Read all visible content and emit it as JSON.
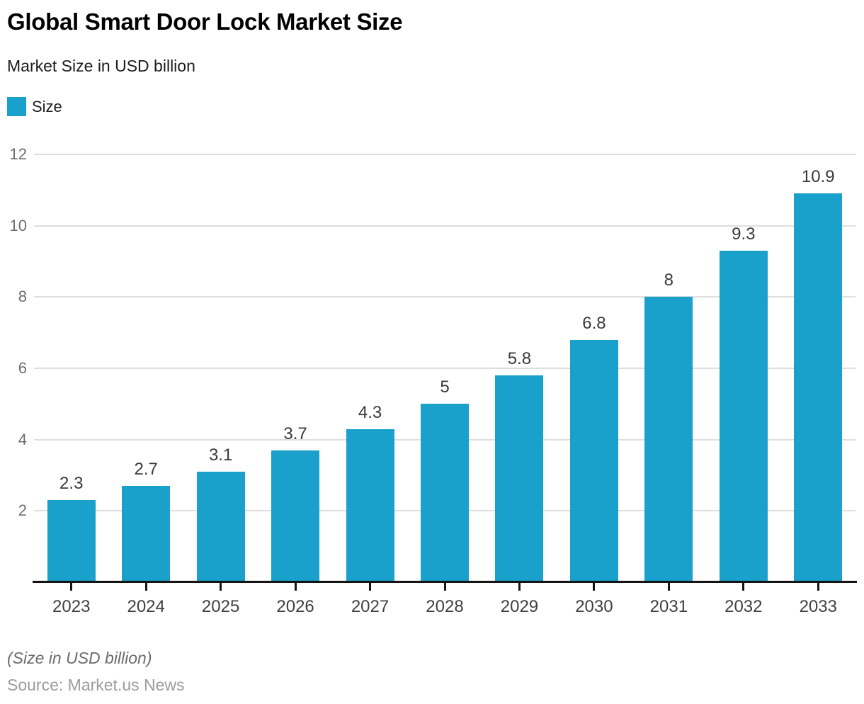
{
  "header": {
    "title": "Global Smart Door Lock Market Size",
    "subtitle": "Market Size in USD billion",
    "legend": [
      {
        "label": "Size",
        "color": "#1AA1CB"
      }
    ]
  },
  "chart_data": {
    "type": "bar",
    "title": "Global Smart Door Lock Market Size",
    "subtitle": "Market Size in USD billion",
    "categories": [
      "2023",
      "2024",
      "2025",
      "2026",
      "2027",
      "2028",
      "2029",
      "2030",
      "2031",
      "2032",
      "2033"
    ],
    "series": [
      {
        "name": "Size",
        "color": "#1AA1CB",
        "values": [
          2.3,
          2.7,
          3.1,
          3.7,
          4.3,
          5,
          5.8,
          6.8,
          8,
          9.3,
          10.9
        ]
      }
    ],
    "data_labels": [
      "2.3",
      "2.7",
      "3.1",
      "3.7",
      "4.3",
      "5",
      "5.8",
      "6.8",
      "8",
      "9.3",
      "10.9"
    ],
    "xlabel": "",
    "ylabel": "",
    "ylim": [
      0,
      12
    ],
    "yticks": [
      2,
      4,
      6,
      8,
      10,
      12
    ],
    "grid": "horizontal",
    "legend_position": "top-left"
  },
  "footer": {
    "note": "(Size in USD billion)",
    "source": "Source: Market.us News"
  },
  "colors": {
    "bar": "#1AA1CB",
    "grid": "#dedede",
    "axis": "#141414",
    "y_label": "#6e6e6e",
    "x_label": "#404040",
    "value_label": "#3a3a3a"
  }
}
